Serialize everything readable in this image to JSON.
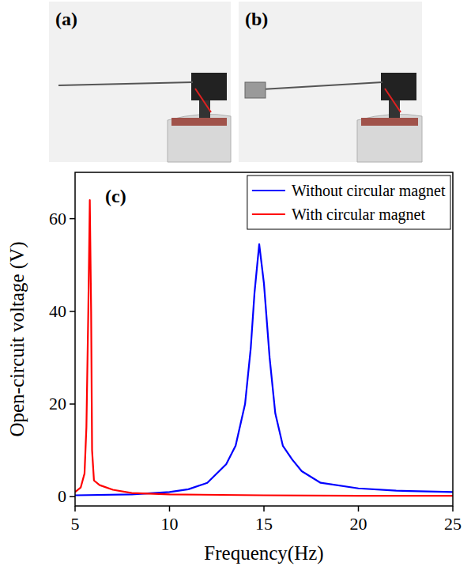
{
  "chart_data": {
    "type": "line",
    "panel_label": "(c)",
    "x_label": "Frequency(Hz)",
    "y_label": "Open-circuit voltage (V)",
    "xlim": [
      5,
      25
    ],
    "xticks": [
      5,
      10,
      15,
      20,
      25
    ],
    "ylim": [
      -2,
      70
    ],
    "yticks": [
      0,
      20,
      40,
      60
    ],
    "legend": "upper right",
    "grid": false,
    "series": [
      {
        "name": "Without circular magnet",
        "color": "#0000ff",
        "line_style": "solid",
        "x": [
          5,
          8,
          10,
          11,
          12,
          13,
          13.5,
          14,
          14.3,
          14.5,
          14.75,
          15,
          15.3,
          15.6,
          16,
          16.5,
          17,
          18,
          20,
          22,
          25
        ],
        "values": [
          0.3,
          0.5,
          1,
          1.6,
          3,
          7,
          11,
          20,
          32,
          44,
          54.5,
          46,
          30,
          18,
          11,
          8,
          5.5,
          3,
          1.8,
          1.3,
          1.0
        ]
      },
      {
        "name": "With circular magnet",
        "color": "#ff0000",
        "line_style": "solid",
        "x": [
          5,
          5.3,
          5.5,
          5.6,
          5.7,
          5.78,
          5.85,
          5.9,
          6,
          6.3,
          7,
          8,
          10,
          15,
          20,
          25
        ],
        "values": [
          1,
          2,
          5,
          15,
          40,
          64,
          40,
          10,
          3.5,
          2.5,
          1.5,
          0.8,
          0.5,
          0.3,
          0.2,
          0.2
        ]
      }
    ]
  },
  "photos": [
    {
      "label": "(a)"
    },
    {
      "label": "(b)"
    }
  ]
}
